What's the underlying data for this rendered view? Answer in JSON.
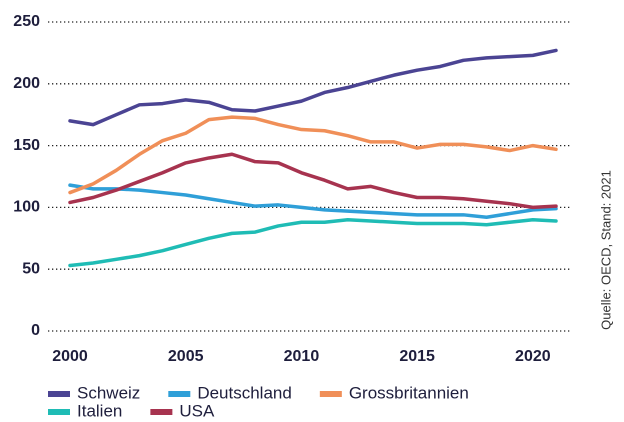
{
  "chart_data": {
    "type": "line",
    "source": "Quelle: OECD, Stand: 2021",
    "x": [
      2000,
      2001,
      2002,
      2003,
      2004,
      2005,
      2006,
      2007,
      2008,
      2009,
      2010,
      2011,
      2012,
      2013,
      2014,
      2015,
      2016,
      2017,
      2018,
      2019,
      2020,
      2021
    ],
    "xlim": [
      2000,
      2021
    ],
    "xticks": [
      2000,
      2005,
      2010,
      2015,
      2020
    ],
    "ylim": [
      0,
      250
    ],
    "yticks": [
      0,
      50,
      100,
      150,
      200,
      250
    ],
    "grid": true,
    "legend": "bottom",
    "series": [
      {
        "name": "Schweiz",
        "color": "#4b4493",
        "values": [
          170,
          167,
          175,
          183,
          184,
          187,
          185,
          179,
          178,
          182,
          186,
          193,
          197,
          202,
          207,
          211,
          214,
          219,
          221,
          222,
          223,
          227
        ]
      },
      {
        "name": "Deutschland",
        "color": "#2f9fd8",
        "values": [
          118,
          115,
          115,
          114,
          112,
          110,
          107,
          104,
          101,
          102,
          100,
          98,
          97,
          96,
          95,
          94,
          94,
          94,
          92,
          95,
          98,
          99
        ]
      },
      {
        "name": "Grossbritannien",
        "color": "#f08f58",
        "values": [
          112,
          119,
          130,
          143,
          154,
          160,
          171,
          173,
          172,
          167,
          163,
          162,
          158,
          153,
          153,
          148,
          151,
          151,
          149,
          146,
          150,
          147
        ]
      },
      {
        "name": "Italien",
        "color": "#1fbcb5",
        "values": [
          53,
          55,
          58,
          61,
          65,
          70,
          75,
          79,
          80,
          85,
          88,
          88,
          90,
          89,
          88,
          87,
          87,
          87,
          86,
          88,
          90,
          89
        ]
      },
      {
        "name": "USA",
        "color": "#a7334f",
        "values": [
          104,
          108,
          114,
          121,
          128,
          136,
          140,
          143,
          137,
          136,
          128,
          122,
          115,
          117,
          112,
          108,
          108,
          107,
          105,
          103,
          100,
          101
        ]
      }
    ]
  }
}
